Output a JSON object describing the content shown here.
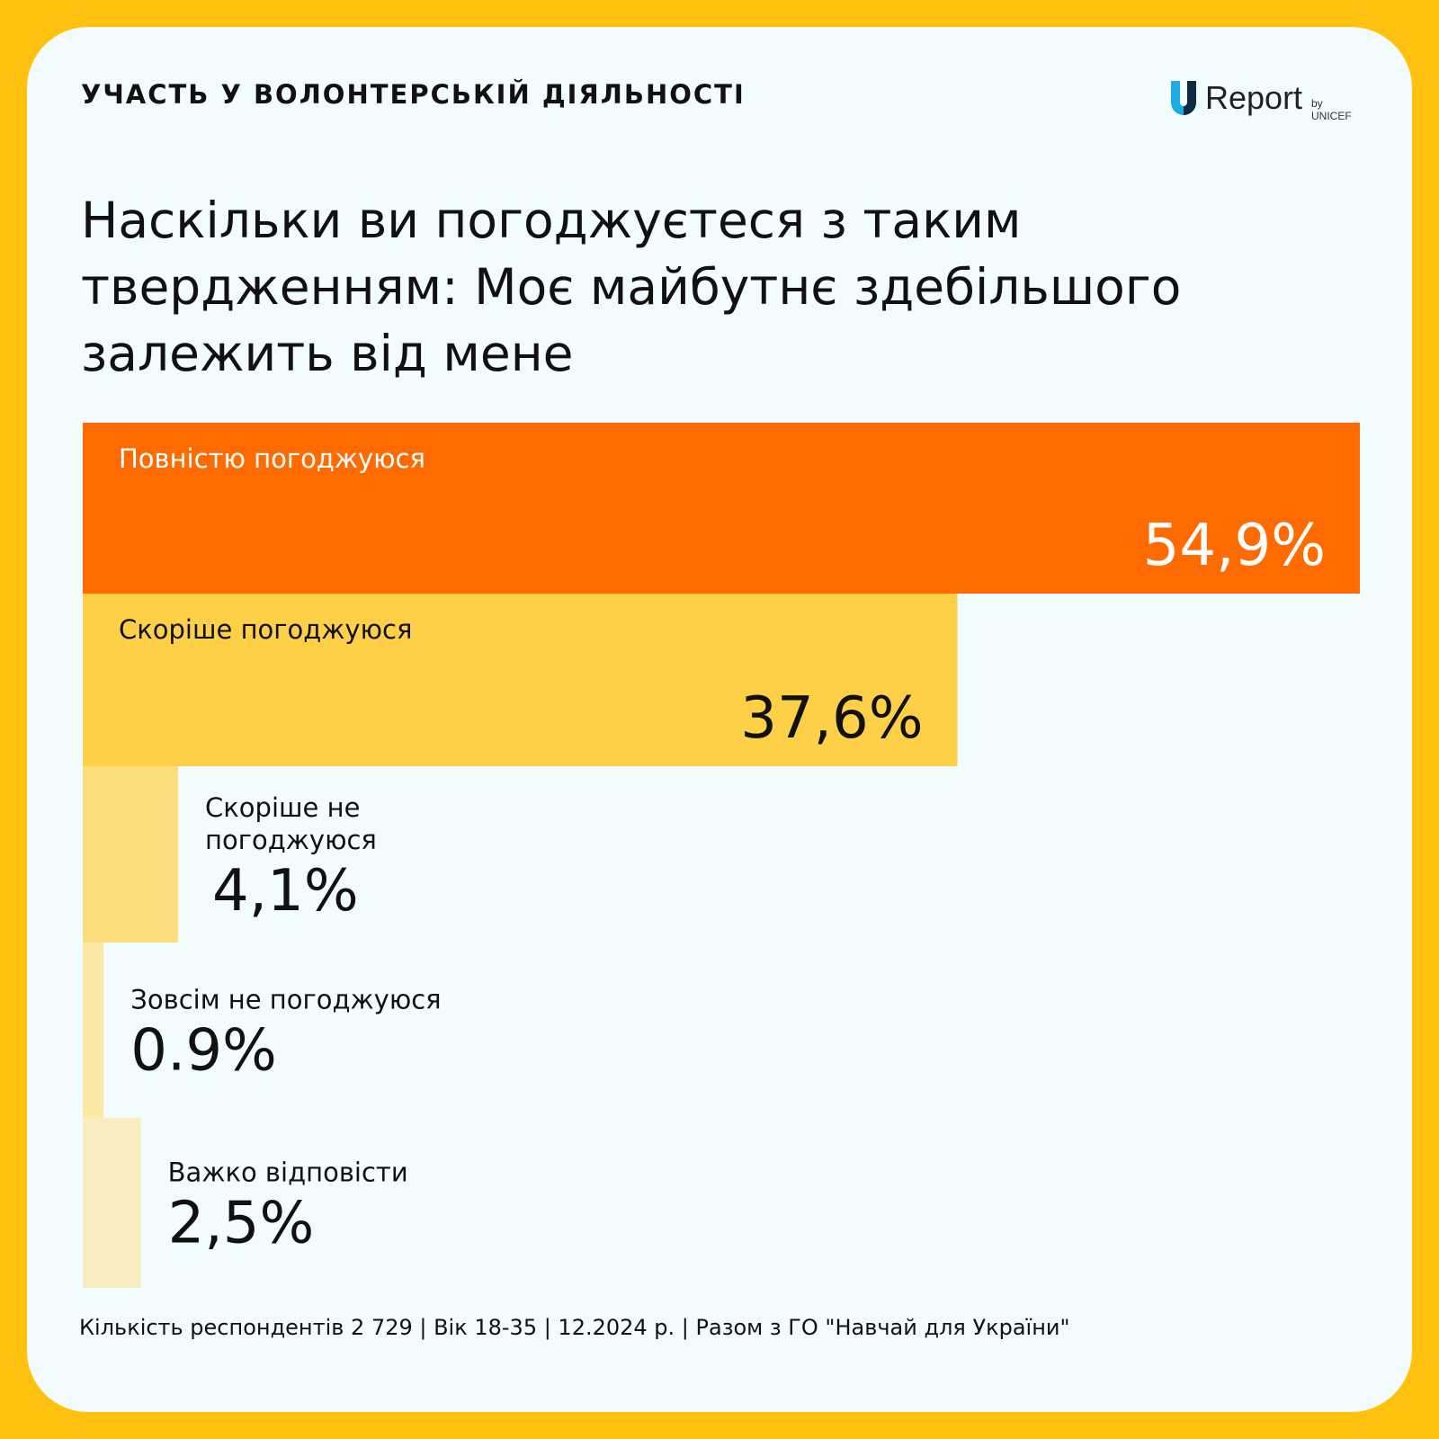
{
  "header": {
    "title": "УЧАСТЬ У ВОЛОНТЕРСЬКІЙ ДІЯЛЬНОСТІ"
  },
  "logo": {
    "brand": "Report",
    "by": "by UNICEF",
    "icon": "u-logo-icon"
  },
  "question": "Наскільки ви погоджуєтеся з таким твердженням: Моє майбутнє здебільшого залежить від мене",
  "footer": {
    "text": "Кількість респондентів 2 729 | Вік 18-35 | 12.2024 р. | Разом з ГО \"Навчай для України\""
  },
  "chart_data": {
    "type": "bar",
    "orientation": "horizontal",
    "categories": [
      "Повністю погоджуюся",
      "Скоріше погоджуюся",
      "Скоріше не погоджуюся",
      "Зовсім не погоджуюся",
      "Важко відповісти"
    ],
    "category_lines": [
      [
        "Повністю погоджуюся"
      ],
      [
        "Скоріше погоджуюся"
      ],
      [
        "Скоріше не",
        "погоджуюся"
      ],
      [
        "Зовсім не погоджуюся"
      ],
      [
        "Важко відповісти"
      ]
    ],
    "values": [
      54.9,
      37.6,
      4.1,
      0.9,
      2.5
    ],
    "value_labels": [
      "54,9%",
      "37,6%",
      "4,1%",
      "0.9%",
      "2,5%"
    ],
    "colors": [
      "#FF6B00",
      "#FDD048",
      "#FCDE7F",
      "#FAE8A4",
      "#F8EDC0"
    ],
    "text_colors": [
      "#FFFFFF",
      "#111111",
      "#111111",
      "#111111",
      "#111111"
    ],
    "xlim": [
      0,
      54.9
    ]
  }
}
